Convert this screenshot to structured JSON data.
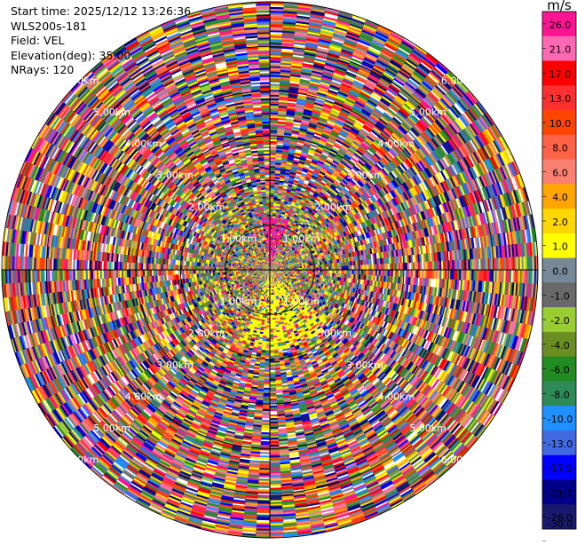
{
  "info": {
    "start_time": "Start time: 2025/12/12 13:26:36",
    "site": "WLS200s-181",
    "field": "Field: VEL",
    "elevation": "Elevation(deg): 35.00",
    "nrays": "NRays: 120"
  },
  "chart_data": {
    "type": "heatmap",
    "projection": "polar-ppi",
    "title": "",
    "field": "VEL",
    "elevation_deg": 35.0,
    "n_rays": 120,
    "max_range_km": 6.0,
    "range_rings_km": [
      1,
      2,
      3,
      4,
      5,
      6
    ],
    "range_ring_labels": [
      "1.00km",
      "2.00km",
      "3.00km",
      "4.00km",
      "5.00km",
      "6.00km"
    ],
    "colorbar": {
      "unit": "m/s",
      "ticks": [
        26.0,
        21.0,
        17.0,
        13.0,
        10.0,
        8.0,
        6.0,
        4.0,
        2.0,
        1.0,
        0.0,
        -1.0,
        -2.0,
        -4.0,
        -6.0,
        -8.0,
        -10.0,
        -13.0,
        -17.0,
        -21.0,
        -26.0,
        -30.0
      ],
      "tick_labels": [
        "26.0",
        "21.0",
        "17.0",
        "13.0",
        "10.0",
        "8.0",
        "6.0",
        "4.0",
        "2.0",
        "1.0",
        "0.0",
        "-1.0",
        "-2.0",
        "-4.0",
        "-6.0",
        "-8.0",
        "-10.0",
        "-13.0",
        "-17.0",
        "-21.0",
        "-26.0",
        "-30.0"
      ],
      "colors": [
        "#ff1493",
        "#ff69b4",
        "#ff0000",
        "#ff3030",
        "#ff4500",
        "#ff6347",
        "#fa8072",
        "#ffa500",
        "#ffd700",
        "#ffff00",
        "#778899",
        "#696969",
        "#9acd32",
        "#6b8e23",
        "#228b22",
        "#2e8b57",
        "#1e90ff",
        "#4169e1",
        "#0000ff",
        "#00008b",
        "#191970"
      ]
    }
  }
}
